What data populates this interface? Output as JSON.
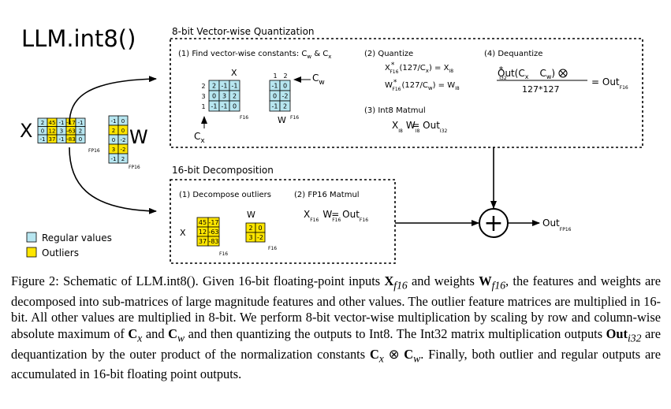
{
  "title": "LLM.int8()",
  "left": {
    "x_label": "X",
    "w_label": "W",
    "x_matrix": [
      [
        "2",
        "45",
        "-1",
        "-17",
        "-1"
      ],
      [
        "0",
        "12",
        "3",
        "-63",
        "2"
      ],
      [
        "-1",
        "37",
        "-1",
        "-83",
        "0"
      ]
    ],
    "w_matrix": [
      [
        "-1",
        "0"
      ],
      [
        "2",
        "0"
      ],
      [
        "0",
        "-2"
      ],
      [
        "3",
        "-2"
      ],
      [
        "-1",
        "2"
      ]
    ],
    "x_sub": "FP16",
    "w_sub": "FP16"
  },
  "legend": {
    "regular": "Regular values",
    "outliers": "Outliers"
  },
  "colors": {
    "regular": "#b7e6f0",
    "outlier": "#ffe600"
  },
  "quant": {
    "title": "8-bit Vector-wise Quantization",
    "step1": {
      "text": "(1) Find vector-wise constants: C",
      "s1": "w",
      "amp": " & C",
      "s2": "x"
    },
    "x_label": "X",
    "cx_values": [
      "2",
      "3",
      "1"
    ],
    "x_matrix": [
      [
        "2",
        "-1",
        "-1"
      ],
      [
        "0",
        "3",
        "2"
      ],
      [
        "-1",
        "-1",
        "0"
      ]
    ],
    "x_sub": "F16",
    "cw_values": [
      "1",
      "2"
    ],
    "cw_label": "C",
    "cw_sub": "w",
    "w_matrix": [
      [
        "-1",
        "0"
      ],
      [
        "0",
        "-2"
      ],
      [
        "-1",
        "2"
      ]
    ],
    "w_label": "W",
    "w_sub": "F16",
    "cx_label": "C",
    "cx_sub": "x",
    "step2": "(2) Quantize",
    "q1": {
      "a": "X",
      "a_sub": "F16",
      "b": "(127/C",
      "b_sub": "x",
      "c": ") = X",
      "c_sub": "I8"
    },
    "q2": {
      "a": "W",
      "a_sub": "F16",
      "b": "(127/C",
      "b_sub": "w",
      "c": ") = W",
      "c_sub": "I8"
    },
    "step3": "(3) Int8 Matmul",
    "mm": {
      "a": "X",
      "a_sub": "I8",
      "b": "W",
      "b_sub": "I8",
      "c": "= Out",
      "c_sub": "I32"
    },
    "step4": "(4) Dequantize",
    "deq": {
      "num_a": "Out",
      "num_a_sub": "I32",
      "num_b": "(C",
      "num_b_sub1": "x",
      "num_c": "C",
      "num_c_sub": "w",
      "num_d": ")",
      "den": "127*127",
      "rhs": "= Out",
      "rhs_sub": "F16"
    }
  },
  "decomp": {
    "title": "16-bit Decomposition",
    "step1": "(1) Decompose outliers",
    "x_label": "X",
    "x_matrix": [
      [
        "45",
        "-17"
      ],
      [
        "12",
        "-63"
      ],
      [
        "37",
        "-83"
      ]
    ],
    "x_sub": "F16",
    "w_label": "W",
    "w_matrix": [
      [
        "2",
        "0"
      ],
      [
        "3",
        "-2"
      ]
    ],
    "w_sub": "F16",
    "step2": "(2) FP16 Matmul",
    "mm": {
      "a": "X",
      "a_sub": "F16",
      "b": "W",
      "b_sub": "F16",
      "c": "= Out",
      "c_sub": "F16"
    }
  },
  "output": {
    "label": "Out",
    "sub": "FP16",
    "op": "+"
  },
  "caption": {
    "p1": "Figure 2: Schematic of LLM.int8(). Given 16-bit floating-point inputs ",
    "xf16": "X",
    "xf16_sub": "f16",
    "p2": " and weights ",
    "wf16": "W",
    "wf16_sub": "f16",
    "p3": ", the features and weights are decomposed into sub-matrices of large magnitude features and other values. The outlier feature matrices are multiplied in 16-bit. All other values are multiplied in 8-bit. We perform 8-bit vector-wise multiplication by scaling by row and column-wise absolute maximum of ",
    "cx": "C",
    "cx_sub": "x",
    "p4": " and ",
    "cw": "C",
    "cw_sub": "w",
    "p5": " and then quantizing the outputs to Int8. The Int32 matrix multiplication outputs ",
    "out": "Out",
    "out_sub": "i32",
    "p6": " are dequantization by the outer product of the normalization constants ",
    "cx2": "C",
    "cx2_sub": "x",
    "otimes": " ⊗ ",
    "cw2": "C",
    "cw2_sub": "w",
    "p7": ". Finally, both outlier and regular outputs are accumulated in 16-bit floating point outputs."
  }
}
